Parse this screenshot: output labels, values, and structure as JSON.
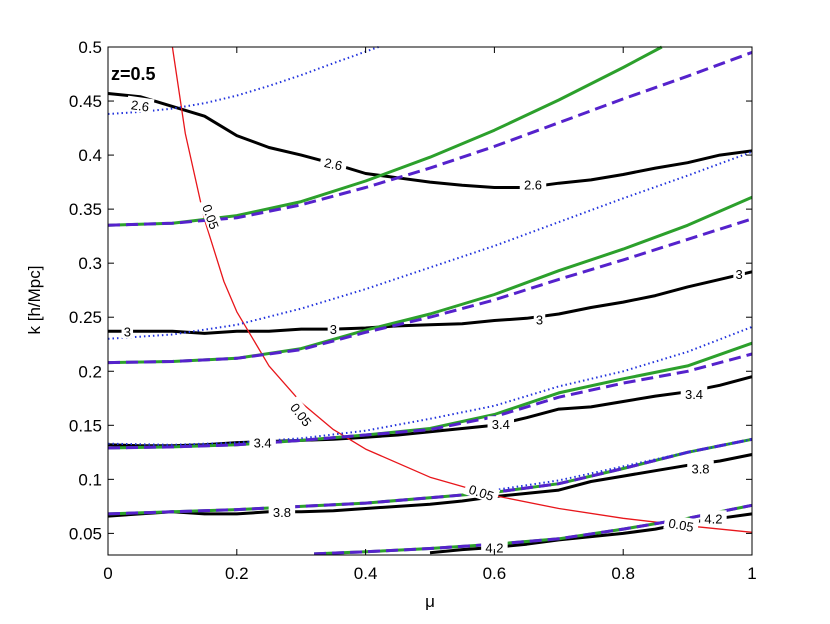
{
  "chart_data": {
    "type": "line",
    "title": "",
    "annotation": "z=0.5",
    "xlabel": "μ",
    "ylabel": "k [h/Mpc]",
    "xlim": [
      0,
      1
    ],
    "ylim": [
      0.03,
      0.5
    ],
    "xticks": [
      "0",
      "0.2",
      "0.4",
      "0.6",
      "0.8",
      "1"
    ],
    "yticks": [
      "0.05",
      "0.1",
      "0.15",
      "0.2",
      "0.25",
      "0.3",
      "0.35",
      "0.4",
      "0.45",
      "0.5"
    ],
    "grid": false,
    "colors": {
      "black": "#000000",
      "red": "#e8161b",
      "green": "#2ca02c",
      "purple": "#5522cc",
      "blue": "#2233dd"
    },
    "series": [
      {
        "color": "black",
        "style": "solid",
        "x": [
          0,
          0.05,
          0.1,
          0.15,
          0.2,
          0.25,
          0.3,
          0.35,
          0.4,
          0.45,
          0.5,
          0.55,
          0.6,
          0.65,
          0.7,
          0.75,
          0.8,
          0.85,
          0.9,
          0.95,
          1.0
        ],
        "y": [
          0.457,
          0.454,
          0.445,
          0.436,
          0.418,
          0.407,
          0.4,
          0.392,
          0.383,
          0.379,
          0.375,
          0.372,
          0.37,
          0.37,
          0.374,
          0.377,
          0.382,
          0.388,
          0.393,
          0.4,
          0.404
        ]
      },
      {
        "color": "black",
        "style": "solid",
        "x": [
          0,
          0.05,
          0.1,
          0.15,
          0.2,
          0.25,
          0.3,
          0.35,
          0.4,
          0.45,
          0.5,
          0.55,
          0.6,
          0.65,
          0.7,
          0.75,
          0.8,
          0.85,
          0.9,
          0.95,
          1.0
        ],
        "y": [
          0.237,
          0.237,
          0.237,
          0.235,
          0.237,
          0.237,
          0.239,
          0.239,
          0.24,
          0.242,
          0.243,
          0.244,
          0.247,
          0.249,
          0.253,
          0.259,
          0.264,
          0.27,
          0.278,
          0.285,
          0.292
        ]
      },
      {
        "color": "black",
        "style": "solid",
        "x": [
          0,
          0.05,
          0.1,
          0.15,
          0.2,
          0.25,
          0.3,
          0.35,
          0.4,
          0.45,
          0.5,
          0.55,
          0.6,
          0.65,
          0.7,
          0.75,
          0.8,
          0.85,
          0.9,
          0.95,
          1.0
        ],
        "y": [
          0.132,
          0.131,
          0.131,
          0.132,
          0.134,
          0.135,
          0.136,
          0.137,
          0.139,
          0.141,
          0.144,
          0.147,
          0.15,
          0.157,
          0.165,
          0.167,
          0.172,
          0.177,
          0.181,
          0.187,
          0.195
        ]
      },
      {
        "color": "black",
        "style": "solid",
        "x": [
          0,
          0.05,
          0.1,
          0.15,
          0.2,
          0.25,
          0.3,
          0.35,
          0.4,
          0.45,
          0.5,
          0.55,
          0.6,
          0.65,
          0.7,
          0.75,
          0.8,
          0.85,
          0.9,
          0.95,
          1.0
        ],
        "y": [
          0.066,
          0.068,
          0.07,
          0.068,
          0.068,
          0.07,
          0.07,
          0.071,
          0.073,
          0.075,
          0.077,
          0.08,
          0.084,
          0.087,
          0.09,
          0.098,
          0.103,
          0.108,
          0.113,
          0.117,
          0.123
        ]
      },
      {
        "color": "black",
        "style": "solid",
        "x": [
          0.5,
          0.55,
          0.6,
          0.65,
          0.7,
          0.75,
          0.8,
          0.85,
          0.9,
          0.95,
          1.0
        ],
        "y": [
          0.032,
          0.035,
          0.037,
          0.04,
          0.044,
          0.047,
          0.05,
          0.054,
          0.06,
          0.064,
          0.068
        ]
      },
      {
        "color": "red",
        "style": "solid",
        "x": [
          0.1,
          0.12,
          0.15,
          0.18,
          0.2,
          0.25,
          0.3,
          0.35,
          0.4,
          0.5,
          0.6,
          0.7,
          0.8,
          0.9,
          1.0
        ],
        "y": [
          0.5,
          0.42,
          0.34,
          0.283,
          0.255,
          0.205,
          0.171,
          0.146,
          0.128,
          0.102,
          0.085,
          0.073,
          0.064,
          0.057,
          0.051
        ]
      },
      {
        "color": "green",
        "style": "solid",
        "x": [
          0,
          0.1,
          0.2,
          0.3,
          0.4,
          0.5,
          0.6,
          0.7,
          0.8,
          0.86
        ],
        "y": [
          0.335,
          0.337,
          0.344,
          0.357,
          0.376,
          0.398,
          0.423,
          0.451,
          0.481,
          0.5
        ]
      },
      {
        "color": "purple",
        "style": "dashed",
        "x": [
          0,
          0.1,
          0.2,
          0.3,
          0.4,
          0.5,
          0.6,
          0.7,
          0.8,
          0.9,
          1.0
        ],
        "y": [
          0.335,
          0.337,
          0.342,
          0.354,
          0.37,
          0.388,
          0.408,
          0.43,
          0.452,
          0.473,
          0.495
        ]
      },
      {
        "color": "green",
        "style": "solid",
        "x": [
          0,
          0.1,
          0.2,
          0.3,
          0.4,
          0.5,
          0.6,
          0.7,
          0.8,
          0.9,
          1.0
        ],
        "y": [
          0.208,
          0.209,
          0.212,
          0.221,
          0.238,
          0.253,
          0.271,
          0.293,
          0.313,
          0.335,
          0.361
        ]
      },
      {
        "color": "purple",
        "style": "dashed",
        "x": [
          0,
          0.1,
          0.2,
          0.3,
          0.4,
          0.5,
          0.6,
          0.7,
          0.8,
          0.9,
          1.0
        ],
        "y": [
          0.208,
          0.209,
          0.212,
          0.22,
          0.236,
          0.25,
          0.266,
          0.285,
          0.303,
          0.322,
          0.341
        ]
      },
      {
        "color": "green",
        "style": "solid",
        "x": [
          0,
          0.1,
          0.2,
          0.3,
          0.4,
          0.5,
          0.6,
          0.7,
          0.8,
          0.9,
          1.0
        ],
        "y": [
          0.129,
          0.13,
          0.132,
          0.136,
          0.141,
          0.147,
          0.16,
          0.18,
          0.193,
          0.205,
          0.226
        ]
      },
      {
        "color": "purple",
        "style": "dashed",
        "x": [
          0,
          0.1,
          0.2,
          0.3,
          0.4,
          0.5,
          0.6,
          0.7,
          0.8,
          0.9,
          1.0
        ],
        "y": [
          0.129,
          0.13,
          0.132,
          0.136,
          0.141,
          0.146,
          0.158,
          0.176,
          0.189,
          0.2,
          0.216
        ]
      },
      {
        "color": "green",
        "style": "solid",
        "x": [
          0,
          0.1,
          0.2,
          0.3,
          0.4,
          0.5,
          0.6,
          0.7,
          0.8,
          0.9,
          1.0
        ],
        "y": [
          0.068,
          0.07,
          0.072,
          0.075,
          0.078,
          0.083,
          0.088,
          0.096,
          0.11,
          0.125,
          0.137
        ]
      },
      {
        "color": "purple",
        "style": "dashed",
        "x": [
          0,
          0.1,
          0.2,
          0.3,
          0.4,
          0.5,
          0.6,
          0.7,
          0.8,
          0.9,
          1.0
        ],
        "y": [
          0.068,
          0.07,
          0.072,
          0.075,
          0.078,
          0.083,
          0.088,
          0.096,
          0.11,
          0.125,
          0.137
        ]
      },
      {
        "color": "green",
        "style": "solid",
        "x": [
          0.32,
          0.4,
          0.5,
          0.6,
          0.7,
          0.8,
          0.9,
          1.0
        ],
        "y": [
          0.031,
          0.033,
          0.036,
          0.04,
          0.045,
          0.054,
          0.064,
          0.076
        ]
      },
      {
        "color": "purple",
        "style": "dashed",
        "x": [
          0.32,
          0.4,
          0.5,
          0.6,
          0.7,
          0.8,
          0.9,
          1.0
        ],
        "y": [
          0.031,
          0.033,
          0.036,
          0.04,
          0.045,
          0.054,
          0.064,
          0.076
        ]
      },
      {
        "color": "blue",
        "style": "dotted",
        "x": [
          0,
          0.05,
          0.1,
          0.15,
          0.2,
          0.25,
          0.3,
          0.35,
          0.42
        ],
        "y": [
          0.438,
          0.44,
          0.443,
          0.448,
          0.455,
          0.464,
          0.474,
          0.485,
          0.5
        ]
      },
      {
        "color": "blue",
        "style": "dotted",
        "x": [
          0,
          0.1,
          0.2,
          0.3,
          0.4,
          0.5,
          0.6,
          0.7,
          0.8,
          0.9,
          1.0
        ],
        "y": [
          0.23,
          0.234,
          0.243,
          0.258,
          0.276,
          0.296,
          0.316,
          0.338,
          0.36,
          0.381,
          0.403
        ]
      },
      {
        "color": "blue",
        "style": "dotted",
        "x": [
          0,
          0.1,
          0.2,
          0.3,
          0.4,
          0.5,
          0.6,
          0.7,
          0.8,
          0.9,
          1.0
        ],
        "y": [
          0.133,
          0.132,
          0.134,
          0.138,
          0.145,
          0.156,
          0.168,
          0.186,
          0.2,
          0.218,
          0.241
        ]
      },
      {
        "color": "blue",
        "style": "dotted",
        "x": [
          0.6,
          0.7,
          0.8,
          0.9,
          1.0
        ],
        "y": [
          0.09,
          0.099,
          0.112,
          0.125,
          0.137
        ]
      }
    ],
    "contour_labels": [
      {
        "text": "2.6",
        "x": 0.05,
        "y": 0.446,
        "rot": 8
      },
      {
        "text": "2.6",
        "x": 0.35,
        "y": 0.392,
        "rot": 12
      },
      {
        "text": "2.6",
        "x": 0.66,
        "y": 0.373,
        "rot": 0
      },
      {
        "text": "3",
        "x": 0.03,
        "y": 0.237,
        "rot": 0
      },
      {
        "text": "3",
        "x": 0.35,
        "y": 0.239,
        "rot": 0
      },
      {
        "text": "3",
        "x": 0.67,
        "y": 0.248,
        "rot": 0
      },
      {
        "text": "3",
        "x": 0.98,
        "y": 0.29,
        "rot": 0
      },
      {
        "text": "3.4",
        "x": 0.24,
        "y": 0.134,
        "rot": 0
      },
      {
        "text": "3.4",
        "x": 0.61,
        "y": 0.151,
        "rot": 0
      },
      {
        "text": "3.4",
        "x": 0.91,
        "y": 0.179,
        "rot": 0
      },
      {
        "text": "3.8",
        "x": 0.27,
        "y": 0.07,
        "rot": 0
      },
      {
        "text": "3.8",
        "x": 0.92,
        "y": 0.11,
        "rot": 0
      },
      {
        "text": "4.2",
        "x": 0.6,
        "y": 0.037,
        "rot": 0
      },
      {
        "text": "4.2",
        "x": 0.94,
        "y": 0.064,
        "rot": 0
      },
      {
        "text": "0.05",
        "x": 0.16,
        "y": 0.343,
        "rot": 70
      },
      {
        "text": "0.05",
        "x": 0.3,
        "y": 0.16,
        "rot": 52
      },
      {
        "text": "0.05",
        "x": 0.58,
        "y": 0.088,
        "rot": 18
      },
      {
        "text": "0.05",
        "x": 0.89,
        "y": 0.058,
        "rot": 10
      }
    ]
  }
}
